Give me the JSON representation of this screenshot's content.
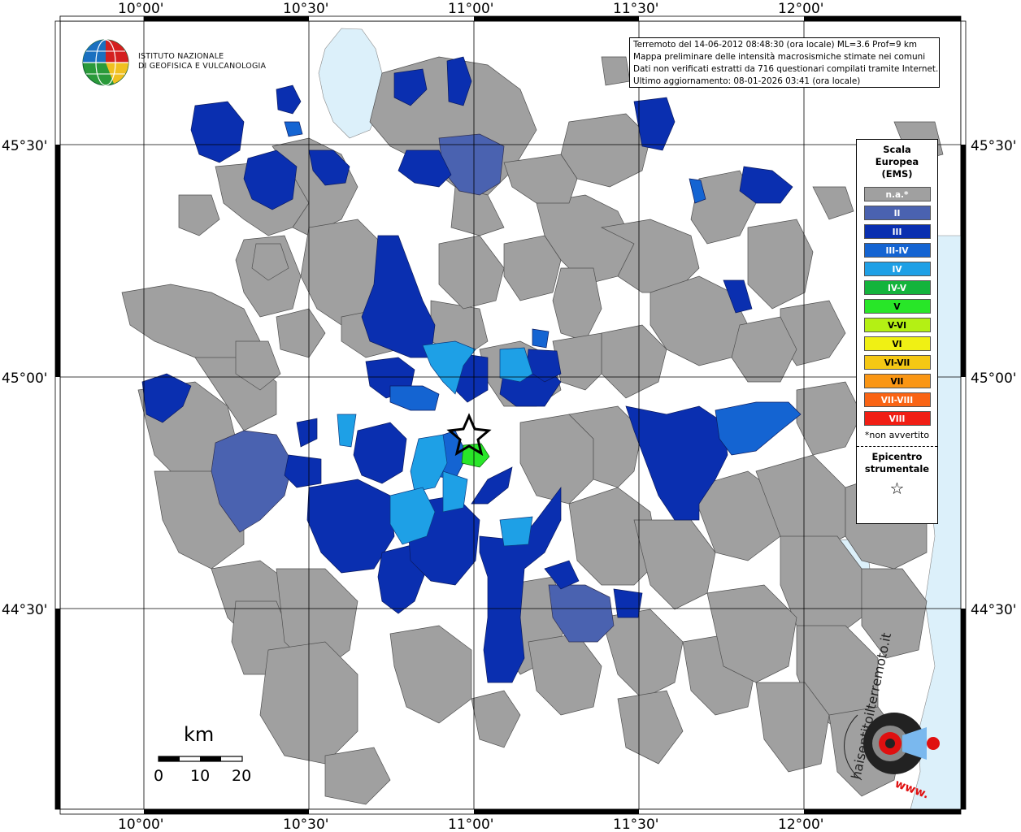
{
  "map": {
    "lon_labels": [
      "10°00'",
      "10°30'",
      "11°00'",
      "11°30'",
      "12°00'"
    ],
    "lat_labels": [
      "45°30'",
      "45°00'",
      "44°30'"
    ]
  },
  "logo": {
    "line1": "ISTITUTO NAZIONALE",
    "line2": "DI GEOFISICA E VULCANOLOGIA"
  },
  "info": {
    "line1": "Terremoto del 14-06-2012 08:48:30 (ora locale) ML=3.6 Prof=9 km",
    "line2": "Mappa preliminare delle intensità macrosismiche stimate nei comuni",
    "line3": "Dati non verificati estratti da 716 questionari compilati tramite Internet.",
    "line4": "Ultimo aggiornamento: 08-01-2026 03:41 (ora locale)"
  },
  "legend": {
    "title1": "Scala",
    "title2": "Europea",
    "title3": "(EMS)",
    "items": [
      {
        "label": "n.a.*",
        "color": "#a0a0a0",
        "text_color": "#ffffff"
      },
      {
        "label": "II",
        "color": "#4a62b0",
        "text_color": "#ffffff"
      },
      {
        "label": "III",
        "color": "#0a2fb0",
        "text_color": "#ffffff"
      },
      {
        "label": "III-IV",
        "color": "#1464d2",
        "text_color": "#ffffff"
      },
      {
        "label": "IV",
        "color": "#1ea0e6",
        "text_color": "#ffffff"
      },
      {
        "label": "IV-V",
        "color": "#14b43c",
        "text_color": "#ffffff"
      },
      {
        "label": "V",
        "color": "#28e628",
        "text_color": "#000000"
      },
      {
        "label": "V-VI",
        "color": "#b4f014",
        "text_color": "#000000"
      },
      {
        "label": "VI",
        "color": "#f0f014",
        "text_color": "#000000"
      },
      {
        "label": "VI-VII",
        "color": "#f5c814",
        "text_color": "#000000"
      },
      {
        "label": "VII",
        "color": "#fa9614",
        "text_color": "#000000"
      },
      {
        "label": "VII-VIII",
        "color": "#fa6414",
        "text_color": "#ffffff"
      },
      {
        "label": "VIII",
        "color": "#f01e14",
        "text_color": "#ffffff"
      }
    ],
    "note": "*non avvertito",
    "epicenter1": "Epicentro",
    "epicenter2": "strumentale",
    "epicenter_symbol": "☆"
  },
  "scale_bar": {
    "title": "km",
    "ticks": [
      "0",
      "10",
      "20"
    ]
  },
  "watermark": {
    "text": "haisentitoilterremoto.it",
    "text2": "www.",
    "colors": {
      "red": "#e01010",
      "dark": "#222222",
      "blue": "#7ab8ee"
    }
  },
  "colors": {
    "gray": "#a0a0a0",
    "ii": "#4a62b0",
    "iii": "#0a2fb0",
    "iii_iv": "#1464d2",
    "iv": "#1ea0e6",
    "v": "#28e628",
    "water": "#dcf0fa"
  }
}
